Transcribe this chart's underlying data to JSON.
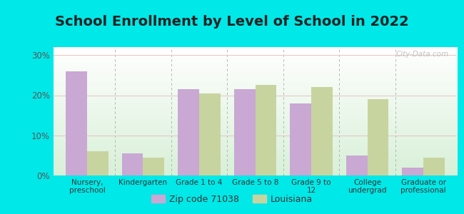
{
  "title": "School Enrollment by Level of School in 2022",
  "categories": [
    "Nursery,\npreschool",
    "Kindergarten",
    "Grade 1 to 4",
    "Grade 5 to 8",
    "Grade 9 to\n12",
    "College\nundergrad",
    "Graduate or\nprofessional"
  ],
  "zip_values": [
    26.0,
    5.5,
    21.5,
    21.5,
    18.0,
    5.0,
    2.0
  ],
  "la_values": [
    6.0,
    4.5,
    20.5,
    22.5,
    22.0,
    19.0,
    4.5
  ],
  "zip_color": "#c9a8d4",
  "la_color": "#c8d4a0",
  "background_outer": "#00e8e8",
  "background_inner_top": "#ffffff",
  "background_inner_bottom": "#d8f0d8",
  "ylim": [
    0,
    32
  ],
  "yticks": [
    0,
    10,
    20,
    30
  ],
  "ytick_labels": [
    "0%",
    "10%",
    "20%",
    "30%"
  ],
  "legend_zip_label": "Zip code 71038",
  "legend_la_label": "Louisiana",
  "bar_width": 0.38,
  "title_fontsize": 14,
  "watermark": "City-Data.com"
}
